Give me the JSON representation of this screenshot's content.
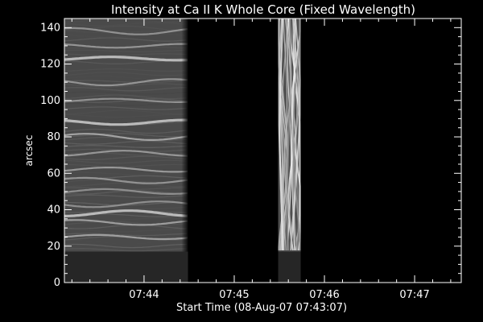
{
  "chart_data": {
    "type": "heatmap",
    "title": "Intensity at Ca II K Whole Core (Fixed Wavelength)",
    "xlabel": "Start Time (08-Aug-07 07:43:07)",
    "ylabel": "arcsec",
    "x_ticks": [
      "07:44",
      "07:45",
      "07:46",
      "07:47"
    ],
    "x_tick_minutes_from_start": [
      0.883,
      1.883,
      2.883,
      3.883
    ],
    "y_ticks": [
      0,
      20,
      40,
      60,
      80,
      100,
      120,
      140
    ],
    "xlim_minutes_from_start": [
      0,
      4.4
    ],
    "ylim": [
      0,
      145
    ],
    "data_blocks": [
      {
        "x_start_min": 0.0,
        "x_end_min": 1.37,
        "y_start": 17,
        "y_end": 145,
        "style": "banded"
      },
      {
        "x_start_min": 2.37,
        "x_end_min": 2.62,
        "y_start": 17,
        "y_end": 145,
        "style": "fibrous"
      }
    ],
    "no_data_region": {
      "y_start": 0,
      "y_end": 17
    },
    "bright_band_positions": [
      25,
      33,
      38,
      43,
      50,
      56,
      62,
      71,
      80,
      88,
      100,
      110,
      123,
      130,
      138
    ],
    "brightest_bands": [
      38,
      88,
      123
    ],
    "grid": false,
    "colors": {
      "background": "#000000",
      "text": "#ffffff",
      "no_data": "#262626"
    }
  }
}
